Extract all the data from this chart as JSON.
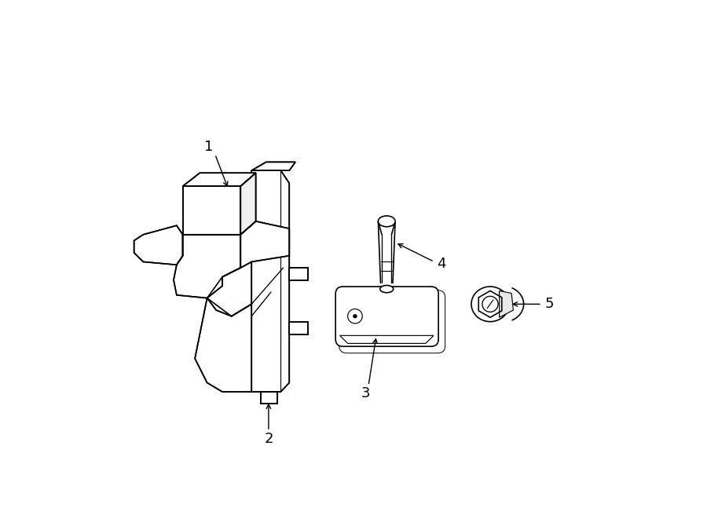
{
  "bg_color": "#ffffff",
  "line_color": "#000000",
  "lw": 1.2,
  "figsize": [
    9.0,
    6.61
  ],
  "dpi": 100
}
